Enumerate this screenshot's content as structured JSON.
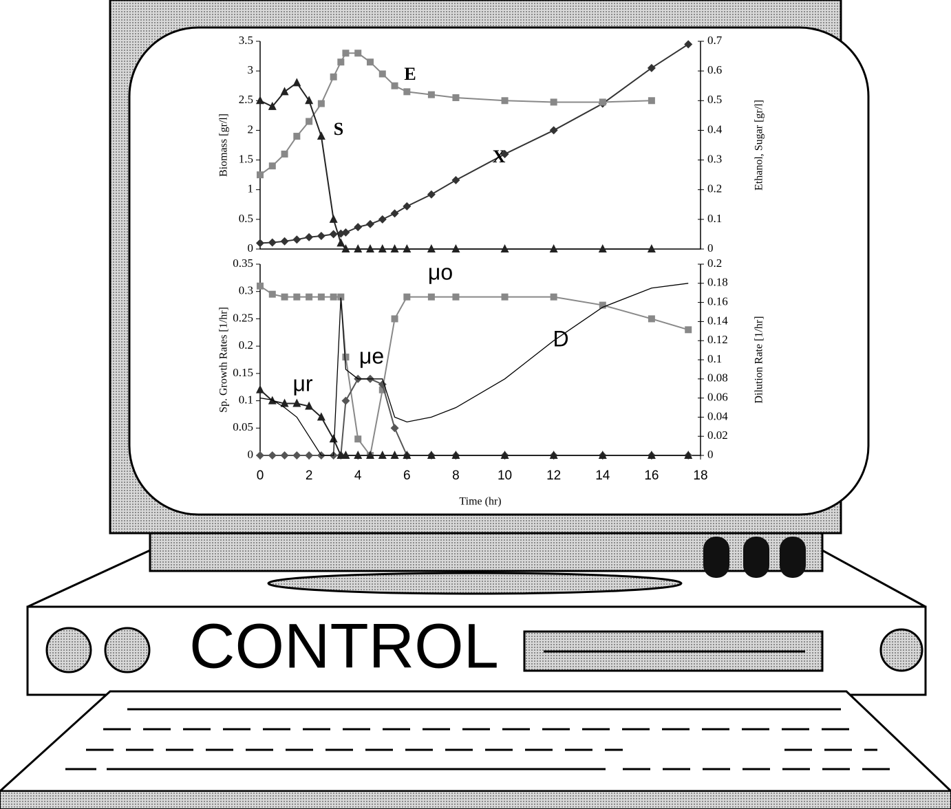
{
  "chart_data": [
    {
      "type": "line",
      "y_label": "Biomass  [gr/l]",
      "y2_label": "Ethanol, Sugar  [gr/l]",
      "x": [
        0,
        0.5,
        1,
        1.5,
        2,
        2.5,
        3,
        3.3,
        3.5,
        4,
        4.5,
        5,
        5.5,
        6,
        7,
        8,
        10,
        12,
        14,
        16,
        17.5
      ],
      "xlim": [
        0,
        18
      ],
      "ylim": [
        0,
        3.5
      ],
      "yticks": [
        0,
        0.5,
        1,
        1.5,
        2,
        2.5,
        3,
        3.5
      ],
      "y2lim": [
        0,
        0.7
      ],
      "y2ticks": [
        0,
        0.1,
        0.2,
        0.3,
        0.4,
        0.5,
        0.6,
        0.7
      ],
      "series": [
        {
          "name": "X",
          "color": "#333333",
          "marker": "diamond",
          "values": [
            0.1,
            0.11,
            0.13,
            0.16,
            0.2,
            0.22,
            0.25,
            0.26,
            0.28,
            0.37,
            0.42,
            0.5,
            0.6,
            0.72,
            0.92,
            1.16,
            1.6,
            2.0,
            2.45,
            3.05,
            3.45
          ]
        },
        {
          "name": "E",
          "color": "#888888",
          "marker": "square",
          "axis": "y2",
          "values": [
            0.25,
            0.28,
            0.32,
            0.38,
            0.43,
            0.49,
            0.58,
            0.63,
            0.66,
            0.66,
            0.63,
            0.59,
            0.55,
            0.53,
            0.52,
            0.51,
            0.5,
            0.495,
            0.495,
            0.5,
            null
          ]
        },
        {
          "name": "S",
          "color": "#222222",
          "marker": "triangle",
          "axis": "y2",
          "values": [
            0.5,
            0.48,
            0.53,
            0.56,
            0.5,
            0.38,
            0.1,
            0.02,
            0,
            0,
            0,
            0,
            0,
            0,
            0,
            0,
            0,
            0,
            0,
            0,
            null
          ]
        }
      ]
    },
    {
      "type": "line",
      "y_label": "Sp. Growth Rates   [1/hr]",
      "y2_label": "Dilution Rate  [1/hr]",
      "x_label": "Time (hr)",
      "x": [
        0,
        0.5,
        1,
        1.5,
        2,
        2.5,
        3,
        3.3,
        3.5,
        4,
        4.5,
        5,
        5.5,
        6,
        7,
        8,
        10,
        12,
        14,
        16,
        17.5
      ],
      "xlim": [
        0,
        18
      ],
      "xticks": [
        0,
        2,
        4,
        6,
        8,
        10,
        12,
        14,
        16,
        18
      ],
      "ylim": [
        0,
        0.35
      ],
      "yticks": [
        0,
        0.05,
        0.1,
        0.15,
        0.2,
        0.25,
        0.3,
        0.35
      ],
      "y2lim": [
        0,
        0.2
      ],
      "y2ticks": [
        0,
        0.02,
        0.04,
        0.06,
        0.08,
        0.1,
        0.12,
        0.14,
        0.16,
        0.18,
        0.2
      ],
      "series": [
        {
          "name": "μo",
          "color": "#888888",
          "marker": "square",
          "values": [
            0.31,
            0.295,
            0.29,
            0.29,
            0.29,
            0.29,
            0.29,
            0.29,
            0.18,
            0.03,
            0,
            0.12,
            0.25,
            0.29,
            0.29,
            0.29,
            0.29,
            0.29,
            0.275,
            0.25,
            0.23
          ]
        },
        {
          "name": "μe",
          "color": "#555555",
          "marker": "diamond",
          "values": [
            0,
            0,
            0,
            0,
            0,
            0,
            0,
            0,
            0.1,
            0.14,
            0.14,
            0.13,
            0.05,
            0,
            0,
            0,
            0,
            0,
            0,
            0,
            0
          ]
        },
        {
          "name": "μr",
          "color": "#222222",
          "marker": "triangle",
          "values": [
            0.12,
            0.1,
            0.095,
            0.095,
            0.09,
            0.07,
            0.03,
            0,
            0,
            0,
            0,
            0,
            0,
            0,
            0,
            0,
            0,
            0,
            0,
            0,
            0
          ]
        },
        {
          "name": "D",
          "color": "#000000",
          "marker": "none",
          "axis": "y2",
          "values": [
            0.06,
            0.058,
            0.05,
            0.04,
            0.02,
            0,
            0,
            0.165,
            0.09,
            0.08,
            0.08,
            0.08,
            0.04,
            0.035,
            0.04,
            0.05,
            0.08,
            0.12,
            0.155,
            0.175,
            0.18
          ]
        }
      ]
    }
  ],
  "control_label": "CONTROL"
}
